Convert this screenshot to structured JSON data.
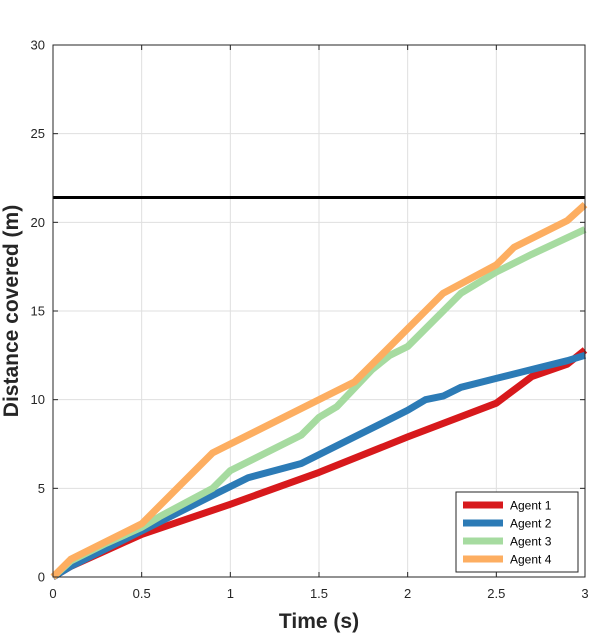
{
  "chart_data": {
    "type": "line",
    "xlabel": "Time (s)",
    "ylabel": "Distance covered (m)",
    "xlim": [
      0,
      3
    ],
    "ylim": [
      0,
      30
    ],
    "xticks": [
      0,
      0.5,
      1,
      1.5,
      2,
      2.5,
      3
    ],
    "xtick_labels": [
      "0",
      "0.5",
      "1",
      "1.5",
      "2",
      "2.5",
      "3"
    ],
    "yticks": [
      0,
      5,
      10,
      15,
      20,
      25,
      30
    ],
    "ytick_labels": [
      "0",
      "5",
      "10",
      "15",
      "20",
      "25",
      "30"
    ],
    "grid": true,
    "legend_position": "bottom-right",
    "reference_line": {
      "y": 21.4,
      "color": "#000000"
    },
    "series": [
      {
        "name": "Agent 1",
        "color": "#d7191c",
        "points": [
          [
            0,
            0
          ],
          [
            0.1,
            0.6
          ],
          [
            0.3,
            1.5
          ],
          [
            0.5,
            2.4
          ],
          [
            1.0,
            4.1
          ],
          [
            1.5,
            5.9
          ],
          [
            2.0,
            7.9
          ],
          [
            2.5,
            9.8
          ],
          [
            2.7,
            11.3
          ],
          [
            2.9,
            12.0
          ],
          [
            3.0,
            12.8
          ]
        ]
      },
      {
        "name": "Agent 2",
        "color": "#2c7bb6",
        "points": [
          [
            0,
            0
          ],
          [
            0.1,
            0.6
          ],
          [
            0.3,
            1.6
          ],
          [
            0.5,
            2.6
          ],
          [
            0.9,
            4.6
          ],
          [
            1.1,
            5.6
          ],
          [
            1.4,
            6.4
          ],
          [
            1.7,
            7.9
          ],
          [
            2.0,
            9.4
          ],
          [
            2.1,
            10.0
          ],
          [
            2.2,
            10.2
          ],
          [
            2.3,
            10.7
          ],
          [
            2.5,
            11.2
          ],
          [
            2.7,
            11.7
          ],
          [
            2.9,
            12.2
          ],
          [
            3.0,
            12.5
          ]
        ]
      },
      {
        "name": "Agent 3",
        "color": "#a6dba0",
        "points": [
          [
            0,
            0
          ],
          [
            0.1,
            0.9
          ],
          [
            0.3,
            1.9
          ],
          [
            0.5,
            2.8
          ],
          [
            0.6,
            3.4
          ],
          [
            0.9,
            5.0
          ],
          [
            1.0,
            6.0
          ],
          [
            1.2,
            7.0
          ],
          [
            1.4,
            8.0
          ],
          [
            1.5,
            9.0
          ],
          [
            1.6,
            9.6
          ],
          [
            1.8,
            11.7
          ],
          [
            1.9,
            12.5
          ],
          [
            2.0,
            13.0
          ],
          [
            2.3,
            16.0
          ],
          [
            2.5,
            17.2
          ],
          [
            2.7,
            18.2
          ],
          [
            3.0,
            19.6
          ]
        ]
      },
      {
        "name": "Agent 4",
        "color": "#fdae61",
        "points": [
          [
            0,
            0
          ],
          [
            0.1,
            1.0
          ],
          [
            0.3,
            2.0
          ],
          [
            0.5,
            3.0
          ],
          [
            0.7,
            5.0
          ],
          [
            0.9,
            7.0
          ],
          [
            1.0,
            7.5
          ],
          [
            1.4,
            9.5
          ],
          [
            1.7,
            11.0
          ],
          [
            1.8,
            12.0
          ],
          [
            2.0,
            14.0
          ],
          [
            2.2,
            16.0
          ],
          [
            2.5,
            17.6
          ],
          [
            2.6,
            18.6
          ],
          [
            2.9,
            20.1
          ],
          [
            3.0,
            21.0
          ]
        ]
      }
    ]
  }
}
